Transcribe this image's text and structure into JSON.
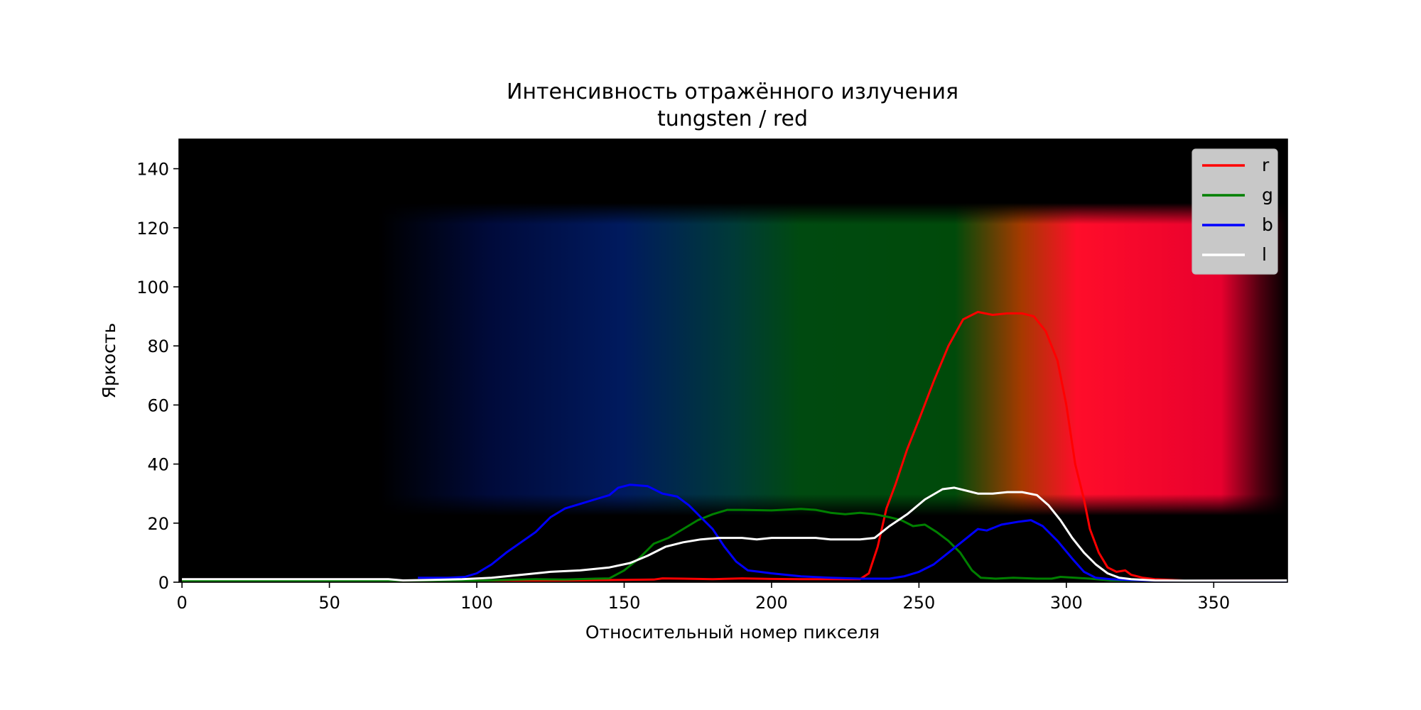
{
  "chart_data": {
    "type": "line",
    "title": "Интенсивность отражённого излучения",
    "subtitle": "tungsten / red",
    "xlabel": "Относительный номер пикселя",
    "ylabel": "Яркость",
    "xlim": [
      -1,
      375
    ],
    "ylim": [
      0,
      150
    ],
    "xticks": [
      0,
      50,
      100,
      150,
      200,
      250,
      300,
      350
    ],
    "yticks": [
      0,
      20,
      40,
      60,
      80,
      100,
      120,
      140
    ],
    "grid": false,
    "legend_position": "top-right",
    "background": "spectrum image (blue to green to red band)",
    "series": [
      {
        "name": "r",
        "color": "#ff0000",
        "points": [
          [
            0,
            0.5
          ],
          [
            80,
            0.5
          ],
          [
            130,
            0.6
          ],
          [
            150,
            0.8
          ],
          [
            160,
            0.9
          ],
          [
            163,
            1.3
          ],
          [
            170,
            1.2
          ],
          [
            180,
            1.0
          ],
          [
            190,
            1.3
          ],
          [
            200,
            1.1
          ],
          [
            210,
            1.0
          ],
          [
            220,
            1.0
          ],
          [
            230,
            1.0
          ],
          [
            233,
            3
          ],
          [
            236,
            12
          ],
          [
            239,
            25
          ],
          [
            242,
            33
          ],
          [
            246,
            45
          ],
          [
            250,
            55
          ],
          [
            255,
            68
          ],
          [
            260,
            80
          ],
          [
            265,
            89
          ],
          [
            270,
            91.5
          ],
          [
            275,
            90.5
          ],
          [
            280,
            91
          ],
          [
            285,
            91
          ],
          [
            289,
            90
          ],
          [
            293,
            85
          ],
          [
            297,
            75
          ],
          [
            300,
            60
          ],
          [
            303,
            40
          ],
          [
            306,
            28
          ],
          [
            308,
            18
          ],
          [
            311,
            10
          ],
          [
            314,
            5
          ],
          [
            317,
            3.5
          ],
          [
            320,
            4
          ],
          [
            322,
            2.5
          ],
          [
            326,
            1.5
          ],
          [
            330,
            1
          ],
          [
            340,
            0.6
          ],
          [
            375,
            0.6
          ]
        ]
      },
      {
        "name": "g",
        "color": "#008000",
        "points": [
          [
            0,
            0.5
          ],
          [
            100,
            0.5
          ],
          [
            110,
            0.8
          ],
          [
            120,
            1.0
          ],
          [
            130,
            0.9
          ],
          [
            140,
            1.2
          ],
          [
            145,
            1.3
          ],
          [
            150,
            4
          ],
          [
            155,
            8
          ],
          [
            160,
            13
          ],
          [
            165,
            15
          ],
          [
            170,
            18
          ],
          [
            175,
            21
          ],
          [
            180,
            23
          ],
          [
            185,
            24.5
          ],
          [
            190,
            24.5
          ],
          [
            200,
            24.3
          ],
          [
            210,
            24.8
          ],
          [
            215,
            24.5
          ],
          [
            220,
            23.5
          ],
          [
            225,
            23
          ],
          [
            230,
            23.5
          ],
          [
            235,
            23
          ],
          [
            240,
            22
          ],
          [
            244,
            21
          ],
          [
            248,
            19
          ],
          [
            252,
            19.5
          ],
          [
            256,
            17
          ],
          [
            260,
            14
          ],
          [
            264,
            10
          ],
          [
            268,
            4
          ],
          [
            271,
            1.5
          ],
          [
            276,
            1.2
          ],
          [
            282,
            1.5
          ],
          [
            290,
            1.2
          ],
          [
            295,
            1.2
          ],
          [
            298,
            1.8
          ],
          [
            303,
            1.5
          ],
          [
            308,
            1.2
          ],
          [
            315,
            0.6
          ],
          [
            375,
            0.5
          ]
        ]
      },
      {
        "name": "b",
        "color": "#0000ff",
        "points": [
          [
            80,
            1.5
          ],
          [
            90,
            1.5
          ],
          [
            96,
            1.8
          ],
          [
            100,
            3
          ],
          [
            105,
            6
          ],
          [
            110,
            10
          ],
          [
            115,
            13.5
          ],
          [
            120,
            17
          ],
          [
            125,
            22
          ],
          [
            130,
            25
          ],
          [
            135,
            26.5
          ],
          [
            140,
            28
          ],
          [
            145,
            29.5
          ],
          [
            148,
            32
          ],
          [
            152,
            33
          ],
          [
            158,
            32.5
          ],
          [
            163,
            30
          ],
          [
            168,
            29
          ],
          [
            172,
            26
          ],
          [
            176,
            22
          ],
          [
            180,
            18
          ],
          [
            184,
            12
          ],
          [
            188,
            7
          ],
          [
            192,
            4
          ],
          [
            196,
            3.5
          ],
          [
            200,
            3
          ],
          [
            210,
            2
          ],
          [
            220,
            1.5
          ],
          [
            230,
            1.2
          ],
          [
            240,
            1.2
          ],
          [
            245,
            2
          ],
          [
            250,
            3.5
          ],
          [
            255,
            6
          ],
          [
            260,
            10
          ],
          [
            265,
            14
          ],
          [
            270,
            18
          ],
          [
            273,
            17.5
          ],
          [
            278,
            19.5
          ],
          [
            284,
            20.5
          ],
          [
            288,
            21
          ],
          [
            292,
            19
          ],
          [
            297,
            14
          ],
          [
            302,
            8
          ],
          [
            306,
            3.5
          ],
          [
            310,
            1.5
          ],
          [
            315,
            1
          ],
          [
            320,
            0.8
          ],
          [
            330,
            0.5
          ],
          [
            375,
            0.5
          ]
        ]
      },
      {
        "name": "l",
        "color": "#ffffff",
        "points": [
          [
            0,
            1
          ],
          [
            70,
            1
          ],
          [
            75,
            0.6
          ],
          [
            85,
            0.8
          ],
          [
            95,
            1
          ],
          [
            105,
            1.5
          ],
          [
            115,
            2.5
          ],
          [
            125,
            3.5
          ],
          [
            135,
            4
          ],
          [
            145,
            5
          ],
          [
            152,
            6.5
          ],
          [
            158,
            9
          ],
          [
            164,
            12
          ],
          [
            170,
            13.5
          ],
          [
            176,
            14.5
          ],
          [
            182,
            15
          ],
          [
            190,
            15
          ],
          [
            195,
            14.5
          ],
          [
            200,
            15
          ],
          [
            210,
            15
          ],
          [
            215,
            15
          ],
          [
            220,
            14.5
          ],
          [
            230,
            14.5
          ],
          [
            235,
            15
          ],
          [
            240,
            19
          ],
          [
            246,
            23
          ],
          [
            252,
            28
          ],
          [
            258,
            31.5
          ],
          [
            262,
            32
          ],
          [
            266,
            31
          ],
          [
            270,
            30
          ],
          [
            275,
            30
          ],
          [
            280,
            30.5
          ],
          [
            285,
            30.5
          ],
          [
            290,
            29.5
          ],
          [
            294,
            26
          ],
          [
            298,
            21
          ],
          [
            302,
            15
          ],
          [
            306,
            10
          ],
          [
            310,
            6
          ],
          [
            314,
            3
          ],
          [
            318,
            1.5
          ],
          [
            322,
            1
          ],
          [
            330,
            0.6
          ],
          [
            340,
            0.5
          ],
          [
            375,
            0.6
          ]
        ]
      }
    ]
  }
}
